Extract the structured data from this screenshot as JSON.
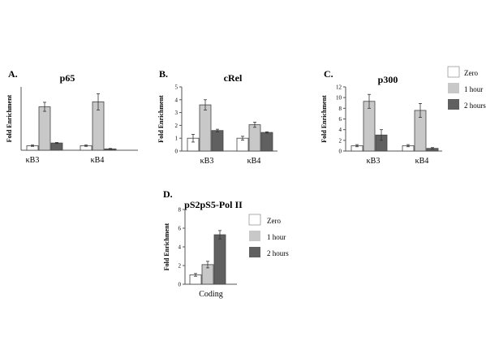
{
  "colors": {
    "zero": "#ffffff",
    "one_hour": "#c8c8c8",
    "two_hours": "#606060",
    "axis": "#555555",
    "edge": "#444444"
  },
  "legend_top": [
    "Zero",
    "1 hour",
    "2 hours"
  ],
  "legend_bottom": [
    "Zero",
    "1 hour",
    "2 hours"
  ],
  "chart_data": [
    {
      "type": "bar",
      "panel": "A.",
      "title": "p65",
      "ylabel": "Fold Enrichment",
      "categories": [
        "κB3",
        "κB4"
      ],
      "ylim": [
        0,
        14
      ],
      "yticks": [],
      "series": [
        {
          "name": "Zero",
          "values": [
            1.0,
            1.0
          ],
          "errors": [
            0.15,
            0.15
          ]
        },
        {
          "name": "1 hour",
          "values": [
            9.6,
            10.7
          ],
          "errors": [
            1.0,
            1.8
          ]
        },
        {
          "name": "2 hours",
          "values": [
            1.6,
            0.3
          ],
          "errors": [
            0.12,
            0.1
          ]
        }
      ]
    },
    {
      "type": "bar",
      "panel": "B.",
      "title": "cRel",
      "ylabel": "Fold Enrichment",
      "categories": [
        "κB3",
        "κB4"
      ],
      "ylim": [
        0,
        5
      ],
      "yticks": [
        "0",
        "1",
        "2",
        "3",
        "4",
        "5"
      ],
      "series": [
        {
          "name": "Zero",
          "values": [
            1.0,
            1.0
          ],
          "errors": [
            0.3,
            0.15
          ]
        },
        {
          "name": "1 hour",
          "values": [
            3.6,
            2.05
          ],
          "errors": [
            0.4,
            0.2
          ]
        },
        {
          "name": "2 hours",
          "values": [
            1.6,
            1.45
          ],
          "errors": [
            0.1,
            0.05
          ]
        }
      ]
    },
    {
      "type": "bar",
      "panel": "C.",
      "title": "p300",
      "ylabel": "Fold Enrichment",
      "categories": [
        "κB3",
        "κB4"
      ],
      "ylim": [
        0,
        12
      ],
      "yticks": [
        "0",
        "2",
        "4",
        "6",
        "8",
        "10",
        "12"
      ],
      "series": [
        {
          "name": "Zero",
          "values": [
            1.0,
            1.0
          ],
          "errors": [
            0.2,
            0.2
          ]
        },
        {
          "name": "1 hour",
          "values": [
            9.3,
            7.6
          ],
          "errors": [
            1.3,
            1.3
          ]
        },
        {
          "name": "2 hours",
          "values": [
            3.0,
            0.5
          ],
          "errors": [
            1.0,
            0.15
          ]
        }
      ]
    },
    {
      "type": "bar",
      "panel": "D.",
      "title": "pS2pS5-Pol II",
      "ylabel": "Fold Enrichment",
      "categories": [
        "Coding"
      ],
      "ylim": [
        0,
        8
      ],
      "yticks": [
        "0",
        "2",
        "4",
        "6",
        "8"
      ],
      "series": [
        {
          "name": "Zero",
          "values": [
            1.0
          ],
          "errors": [
            0.15
          ]
        },
        {
          "name": "1 hour",
          "values": [
            2.1
          ],
          "errors": [
            0.35
          ]
        },
        {
          "name": "2 hours",
          "values": [
            5.3
          ],
          "errors": [
            0.45
          ]
        }
      ]
    }
  ]
}
